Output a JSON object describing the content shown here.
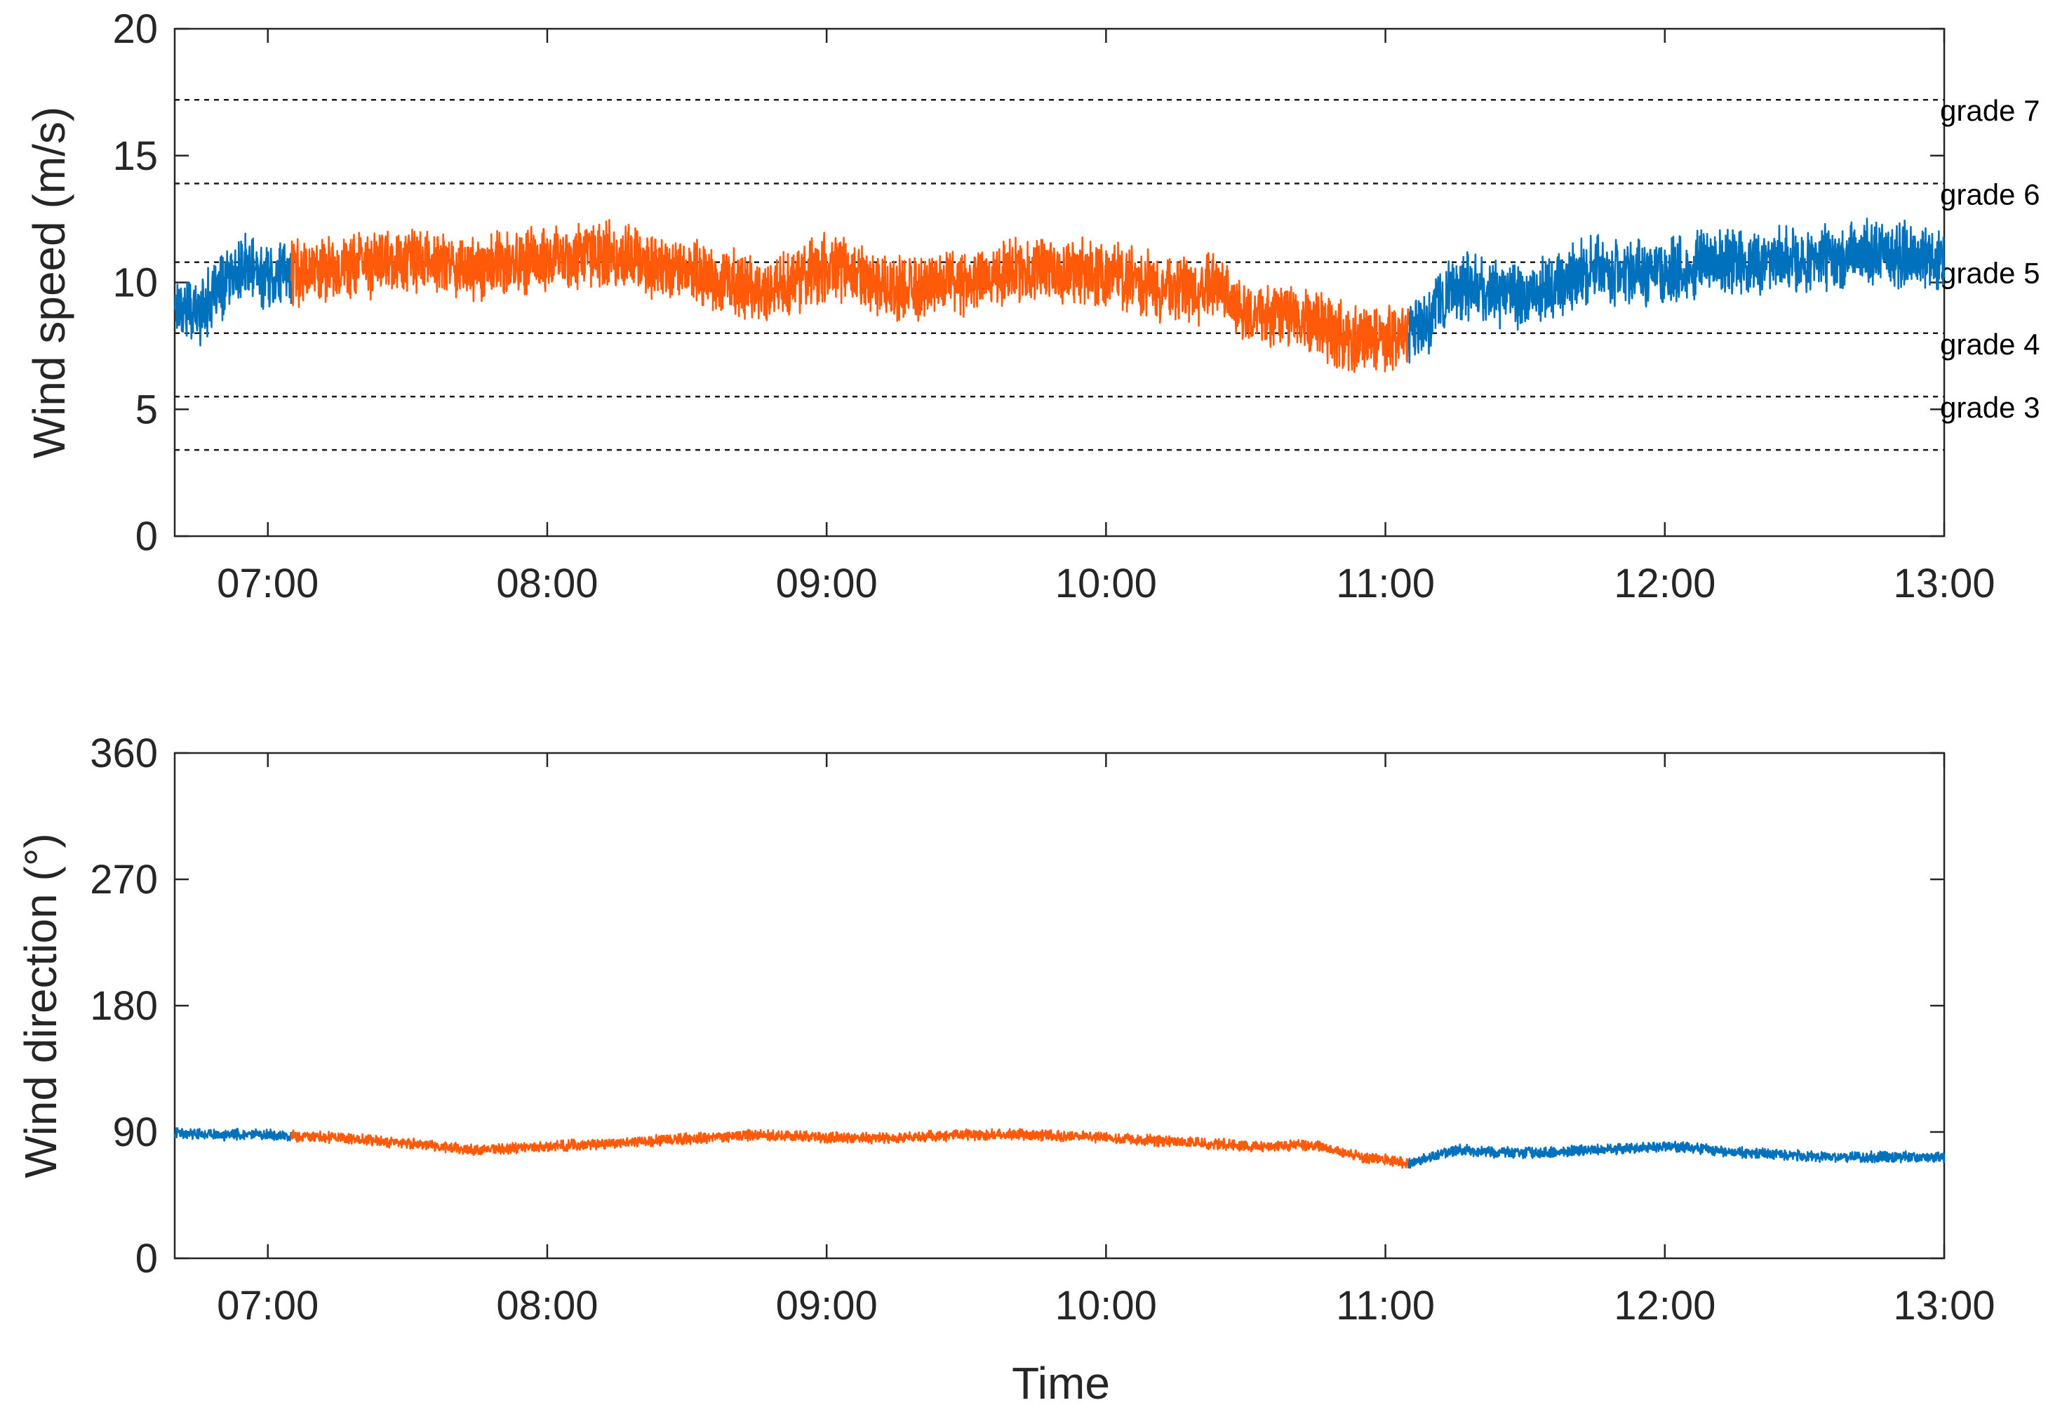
{
  "chart_data": [
    {
      "type": "line",
      "ylabel": "Wind speed (m/s)",
      "xlabel": "",
      "ylim": [
        0,
        20
      ],
      "yticks": [
        0,
        5,
        10,
        15,
        20
      ],
      "xlim": [
        "06:40",
        "13:00"
      ],
      "xticks": [
        "07:00",
        "08:00",
        "09:00",
        "10:00",
        "11:00",
        "12:00",
        "13:00"
      ],
      "grid": false,
      "colors": {
        "blue": "#0072BD",
        "orange": "#FF5A0A"
      },
      "reference_lines": [
        {
          "y": 3.4,
          "label": ""
        },
        {
          "y": 5.5,
          "label": "grade 3"
        },
        {
          "y": 8.0,
          "label": "grade 4"
        },
        {
          "y": 10.8,
          "label": "grade 5"
        },
        {
          "y": 13.9,
          "label": "grade 6"
        },
        {
          "y": 17.2,
          "label": "grade 7"
        }
      ],
      "series": [
        {
          "color": "blue",
          "x": [
            "06:40",
            "06:45",
            "06:50",
            "06:55",
            "07:00",
            "07:05"
          ],
          "y": [
            9.2,
            8.8,
            9.8,
            10.6,
            10.2,
            10.4
          ]
        },
        {
          "color": "orange",
          "x": [
            "07:05",
            "07:15",
            "07:30",
            "07:45",
            "08:00",
            "08:10",
            "08:20",
            "08:30",
            "08:45",
            "09:00",
            "09:15",
            "09:30",
            "09:45",
            "10:00",
            "10:15",
            "10:25",
            "10:30",
            "10:40",
            "10:50",
            "11:00",
            "11:05"
          ],
          "y": [
            10.4,
            10.6,
            10.9,
            10.6,
            10.9,
            11.2,
            10.9,
            10.5,
            9.6,
            10.6,
            9.8,
            10.1,
            10.6,
            10.3,
            9.6,
            9.9,
            8.6,
            8.8,
            7.9,
            7.8,
            7.9
          ]
        },
        {
          "color": "blue",
          "x": [
            "11:05",
            "11:10",
            "11:15",
            "11:30",
            "11:45",
            "12:00",
            "12:15",
            "12:30",
            "12:45",
            "13:00"
          ],
          "y": [
            7.9,
            8.6,
            9.9,
            9.4,
            10.5,
            10.4,
            10.9,
            10.8,
            11.3,
            10.8
          ]
        }
      ]
    },
    {
      "type": "line",
      "ylabel": "Wind direction (°)",
      "xlabel": "Time",
      "ylim": [
        0,
        360
      ],
      "yticks": [
        0,
        90,
        180,
        270,
        360
      ],
      "xlim": [
        "06:40",
        "13:00"
      ],
      "xticks": [
        "07:00",
        "08:00",
        "09:00",
        "10:00",
        "11:00",
        "12:00",
        "13:00"
      ],
      "grid": false,
      "colors": {
        "blue": "#0072BD",
        "orange": "#FF5A0A"
      },
      "series": [
        {
          "color": "blue",
          "x": [
            "06:40",
            "06:50",
            "07:00",
            "07:05"
          ],
          "y": [
            90,
            88,
            88,
            87
          ]
        },
        {
          "color": "orange",
          "x": [
            "07:05",
            "07:15",
            "07:30",
            "07:45",
            "08:00",
            "08:15",
            "08:30",
            "08:45",
            "09:00",
            "09:15",
            "09:30",
            "09:45",
            "10:00",
            "10:15",
            "10:30",
            "10:45",
            "10:55",
            "11:00",
            "11:05"
          ],
          "y": [
            87,
            86,
            82,
            77,
            80,
            82,
            85,
            88,
            86,
            86,
            88,
            88,
            86,
            83,
            80,
            80,
            72,
            70,
            68
          ]
        },
        {
          "color": "blue",
          "x": [
            "11:05",
            "11:15",
            "11:30",
            "11:45",
            "12:00",
            "12:15",
            "12:30",
            "12:45",
            "13:00"
          ],
          "y": [
            68,
            77,
            75,
            77,
            80,
            76,
            73,
            72,
            72
          ]
        }
      ]
    }
  ]
}
